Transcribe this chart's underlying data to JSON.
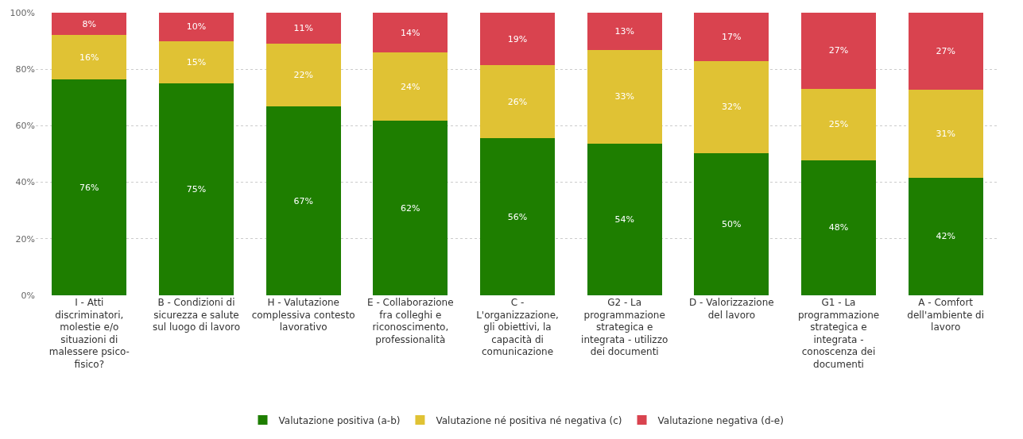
{
  "chart_data": {
    "type": "bar",
    "stacked": true,
    "categories": [
      "I - Atti discriminatori, molestie e/o situazioni di malessere psico-fisico?",
      "B - Condizioni di sicurezza e salute sul luogo di lavoro",
      "H - Valutazione complessiva contesto lavorativo",
      "E - Collaborazione fra colleghi e riconoscimento, professionalità",
      "C - L'organizzazione, gli obiettivi, la capacità di comunicazione",
      "G2 - La programmazione strategica e integrata - utilizzo dei documenti",
      "D - Valorizzazione del lavoro",
      "G1 - La programmazione strategica e integrata - conoscenza dei documenti",
      "A - Comfort dell'ambiente di lavoro"
    ],
    "series": [
      {
        "name": "Valutazione positiva (a-b)",
        "color": "#1e7e00",
        "values": [
          76.3,
          75.0,
          66.8,
          61.7,
          55.6,
          53.6,
          50.4,
          47.8,
          41.7
        ],
        "value_labels": [
          "76%",
          "75%",
          "67%",
          "62%",
          "56%",
          "54%",
          "50%",
          "48%",
          "42%"
        ]
      },
      {
        "name": "Valutazione né positiva né negativa (c)",
        "color": "#e0c234",
        "values": [
          15.8,
          15.0,
          22.3,
          24.2,
          25.8,
          33.3,
          32.4,
          25.3,
          31.1
        ],
        "value_labels": [
          "16%",
          "15%",
          "22%",
          "24%",
          "26%",
          "33%",
          "32%",
          "25%",
          "31%"
        ]
      },
      {
        "name": "Valutazione negativa (d-e)",
        "color": "#d9434f",
        "values": [
          7.9,
          10.0,
          10.9,
          14.1,
          18.6,
          13.1,
          17.2,
          26.9,
          27.1
        ],
        "value_labels": [
          "8%",
          "10%",
          "11%",
          "14%",
          "19%",
          "13%",
          "17%",
          "27%",
          "27%"
        ]
      }
    ],
    "ylim": [
      0,
      100
    ],
    "yticks": [
      {
        "value": 0,
        "label": "0%"
      },
      {
        "value": 20,
        "label": "20%"
      },
      {
        "value": 40,
        "label": "40%"
      },
      {
        "value": 60,
        "label": "60%"
      },
      {
        "value": 80,
        "label": "80%"
      },
      {
        "value": 100,
        "label": "100%"
      }
    ],
    "grid": "y",
    "legend": "bottom"
  }
}
